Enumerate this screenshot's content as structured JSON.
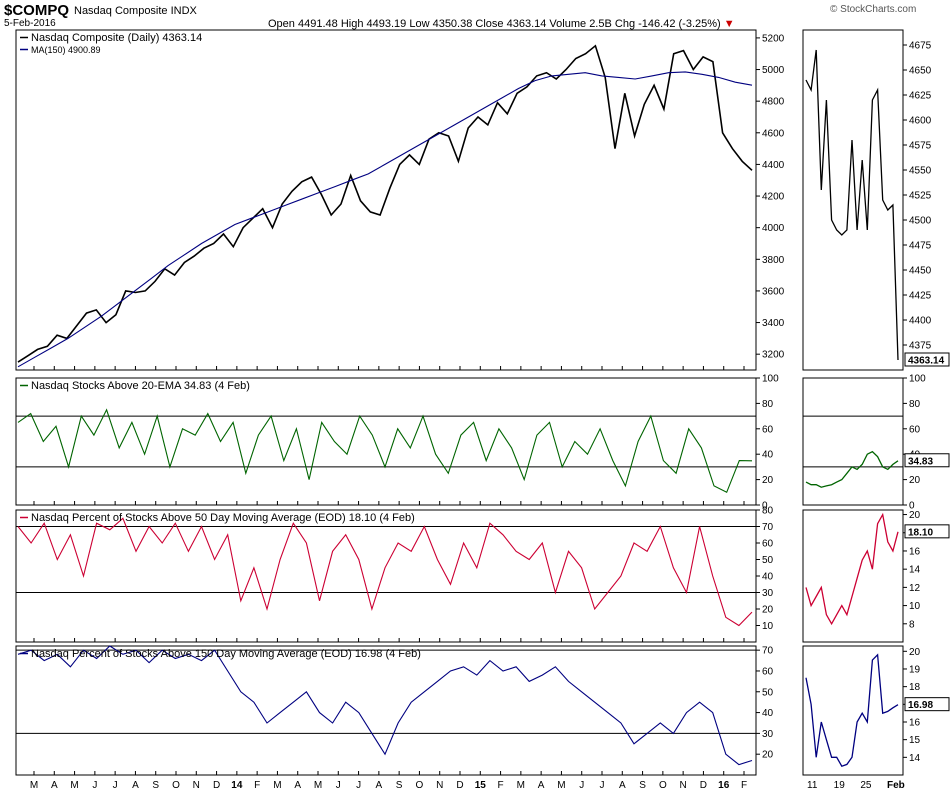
{
  "header": {
    "symbol": "$COMPQ",
    "name": "Nasdaq Composite INDX",
    "date": "5-Feb-2016",
    "brand": "© StockCharts.com",
    "open_label": "Open",
    "open": "4491.48",
    "high_label": "High",
    "high": "4493.19",
    "low_label": "Low",
    "low": "4350.38",
    "close_label": "Close",
    "close": "4363.14",
    "volume_label": "Volume",
    "volume": "2.5B",
    "chg_label": "Chg",
    "chg": "-146.42 (-3.25%)",
    "chg_arrow": "▼"
  },
  "x_axis_main": [
    "M",
    "A",
    "M",
    "J",
    "J",
    "A",
    "S",
    "O",
    "N",
    "D",
    "14",
    "F",
    "M",
    "A",
    "M",
    "J",
    "J",
    "A",
    "S",
    "O",
    "N",
    "D",
    "15",
    "F",
    "M",
    "A",
    "M",
    "J",
    "J",
    "A",
    "S",
    "O",
    "N",
    "D",
    "16",
    "F"
  ],
  "x_axis_side": [
    "11",
    "19",
    "25",
    "Feb"
  ],
  "chart_data": [
    {
      "type": "line",
      "panel": "price",
      "series": [
        {
          "name": "Nasdaq Composite (Daily) 4363.14",
          "color": "#000000",
          "values": [
            3150,
            3190,
            3230,
            3250,
            3320,
            3300,
            3380,
            3460,
            3480,
            3400,
            3450,
            3600,
            3590,
            3600,
            3660,
            3740,
            3700,
            3780,
            3820,
            3870,
            3900,
            3960,
            3880,
            4000,
            4060,
            4120,
            4000,
            4150,
            4230,
            4290,
            4320,
            4210,
            4080,
            4150,
            4330,
            4170,
            4100,
            4080,
            4250,
            4400,
            4460,
            4400,
            4560,
            4600,
            4580,
            4420,
            4630,
            4700,
            4650,
            4790,
            4720,
            4850,
            4890,
            4960,
            4980,
            4940,
            5000,
            5070,
            5100,
            5150,
            4950,
            4500,
            4850,
            4580,
            4780,
            4900,
            4750,
            5100,
            5120,
            5000,
            5080,
            5050,
            4600,
            4500,
            4420,
            4363
          ]
        },
        {
          "name": "MA(150) 4900.89",
          "color": "#000080",
          "values": [
            3120,
            3180,
            3240,
            3300,
            3370,
            3440,
            3520,
            3600,
            3680,
            3760,
            3830,
            3900,
            3960,
            4020,
            4060,
            4100,
            4140,
            4180,
            4220,
            4260,
            4300,
            4340,
            4400,
            4460,
            4520,
            4580,
            4640,
            4700,
            4760,
            4820,
            4880,
            4930,
            4960,
            4970,
            4980,
            4960,
            4950,
            4940,
            4960,
            4980,
            4985,
            4970,
            4950,
            4920,
            4900.89
          ]
        }
      ],
      "ylim": [
        3100,
        5250
      ],
      "yticks": [
        3200,
        3400,
        3600,
        3800,
        4000,
        4200,
        4400,
        4600,
        4800,
        5000,
        5200
      ],
      "last_label": "4363.14"
    },
    {
      "type": "line",
      "panel": "pct_20ema",
      "series": [
        {
          "name": "Nasdaq Stocks Above 20-EMA 34.83 (4 Feb)",
          "color": "#006400",
          "values": [
            65,
            72,
            50,
            62,
            30,
            70,
            55,
            75,
            45,
            65,
            40,
            70,
            30,
            60,
            55,
            72,
            50,
            65,
            25,
            55,
            70,
            35,
            60,
            20,
            65,
            50,
            40,
            70,
            55,
            30,
            60,
            45,
            70,
            40,
            25,
            55,
            65,
            35,
            60,
            45,
            20,
            55,
            65,
            30,
            50,
            40,
            60,
            35,
            15,
            50,
            70,
            35,
            25,
            60,
            45,
            15,
            10,
            35,
            34.83
          ]
        }
      ],
      "ylim": [
        0,
        100
      ],
      "yticks": [
        0,
        20,
        40,
        60,
        80,
        100
      ],
      "reference_lines": [
        30,
        70
      ],
      "last_label": "34.83"
    },
    {
      "type": "line",
      "panel": "pct_50dma",
      "series": [
        {
          "name": "Nasdaq Percent of Stocks Above 50 Day Moving Average (EOD) 18.10 (4 Feb)",
          "color": "#cc0033",
          "values": [
            70,
            60,
            72,
            50,
            65,
            40,
            72,
            68,
            75,
            55,
            70,
            60,
            72,
            55,
            70,
            50,
            65,
            25,
            45,
            20,
            50,
            72,
            60,
            25,
            55,
            65,
            50,
            20,
            45,
            60,
            55,
            70,
            50,
            35,
            60,
            45,
            72,
            65,
            55,
            50,
            60,
            30,
            55,
            45,
            20,
            30,
            40,
            60,
            55,
            70,
            45,
            30,
            70,
            40,
            15,
            10,
            18.1
          ]
        }
      ],
      "ylim": [
        0,
        80
      ],
      "yticks": [
        10,
        20,
        30,
        40,
        50,
        60,
        70,
        80
      ],
      "reference_lines": [
        30,
        70
      ],
      "last_label": "18.10"
    },
    {
      "type": "line",
      "panel": "pct_150dma",
      "series": [
        {
          "name": "Nasdaq Percent of Stocks Above 150 Day Moving Average (EOD) 16.98 (4 Feb)",
          "color": "#000080",
          "values": [
            68,
            70,
            65,
            68,
            62,
            70,
            66,
            72,
            68,
            70,
            64,
            70,
            66,
            68,
            65,
            70,
            60,
            50,
            45,
            35,
            40,
            45,
            50,
            40,
            35,
            45,
            40,
            30,
            20,
            35,
            45,
            50,
            55,
            60,
            62,
            58,
            65,
            60,
            62,
            55,
            58,
            62,
            55,
            50,
            45,
            40,
            35,
            25,
            30,
            35,
            30,
            40,
            45,
            40,
            20,
            15,
            16.98
          ]
        }
      ],
      "ylim": [
        10,
        72
      ],
      "yticks": [
        20,
        30,
        40,
        50,
        60,
        70
      ],
      "reference_lines": [
        30,
        70
      ],
      "last_label": "16.98"
    }
  ],
  "side_panels": [
    {
      "panel": "price",
      "values": [
        4640,
        4630,
        4670,
        4530,
        4620,
        4500,
        4490,
        4485,
        4490,
        4580,
        4490,
        4560,
        4490,
        4620,
        4630,
        4520,
        4510,
        4515,
        4360
      ],
      "ylim": [
        4350,
        4690
      ],
      "yticks": [
        4375,
        4400,
        4425,
        4450,
        4475,
        4500,
        4525,
        4550,
        4575,
        4600,
        4625,
        4650,
        4675
      ],
      "last_label": "4363.14"
    },
    {
      "panel": "pct_20ema",
      "values": [
        18,
        16,
        16,
        14,
        15,
        16,
        18,
        20,
        25,
        30,
        28,
        32,
        40,
        42,
        38,
        30,
        28,
        32,
        34.83
      ],
      "ylim": [
        0,
        100
      ],
      "yticks": [
        0,
        20,
        40,
        60,
        80,
        100
      ],
      "reference_lines": [
        30,
        70
      ],
      "last_label": "34.83"
    },
    {
      "panel": "pct_50dma",
      "values": [
        12,
        10,
        11,
        12,
        9,
        8,
        9,
        10,
        9,
        11,
        13,
        15,
        16,
        14,
        19,
        20,
        17,
        16,
        18.1
      ],
      "ylim": [
        6,
        20.5
      ],
      "yticks": [
        8,
        10,
        12,
        14,
        16,
        18,
        20
      ],
      "last_label": "18.10"
    },
    {
      "panel": "pct_150dma",
      "values": [
        18.5,
        17,
        14,
        16,
        15,
        14,
        14,
        13.5,
        13.6,
        14,
        16,
        16.5,
        16,
        19.5,
        19.8,
        16.5,
        16.6,
        16.8,
        16.98
      ],
      "ylim": [
        13,
        20.3
      ],
      "yticks": [
        14,
        15,
        16,
        17,
        18,
        19,
        20
      ],
      "last_label": "16.98"
    }
  ]
}
